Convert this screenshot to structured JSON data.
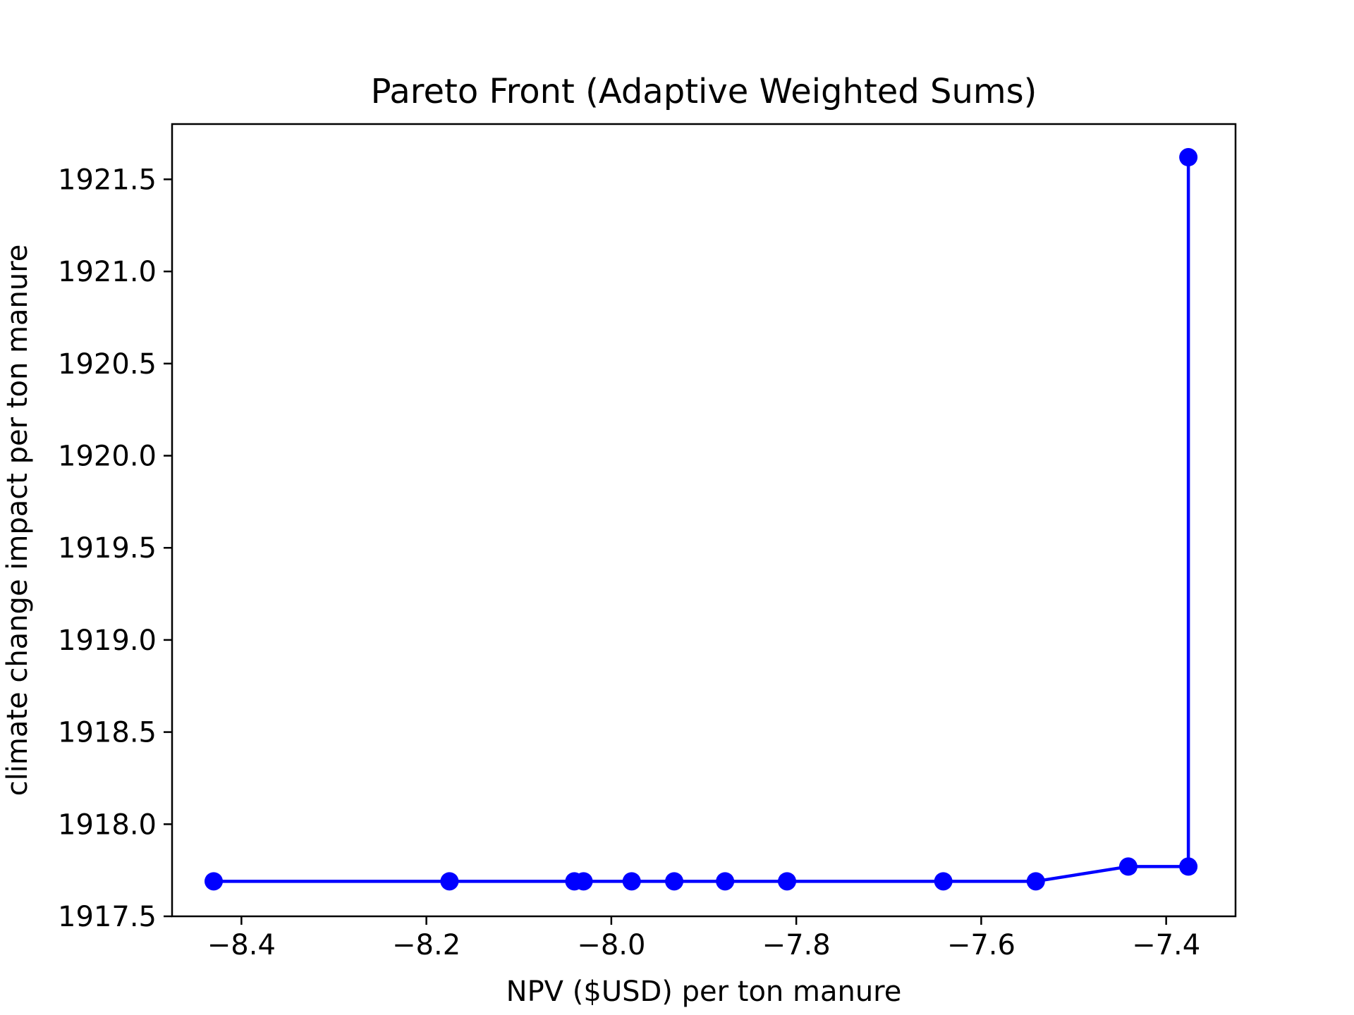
{
  "chart_data": {
    "type": "line",
    "title": "Pareto Front (Adaptive Weighted Sums)",
    "xlabel": "NPV ($USD) per ton manure",
    "ylabel": "climate change impact per ton manure",
    "xlim": [
      -8.475,
      -7.325
    ],
    "ylim": [
      1917.5,
      1921.8
    ],
    "xticks": [
      -8.4,
      -8.2,
      -8.0,
      -7.8,
      -7.6,
      -7.4
    ],
    "xtick_labels": [
      "−8.4",
      "−8.2",
      "−8.0",
      "−7.8",
      "−7.6",
      "−7.4"
    ],
    "yticks": [
      1917.5,
      1918.0,
      1918.5,
      1919.0,
      1919.5,
      1920.0,
      1920.5,
      1921.0,
      1921.5
    ],
    "ytick_labels": [
      "1917.5",
      "1918.0",
      "1918.5",
      "1919.0",
      "1919.5",
      "1920.0",
      "1920.5",
      "1921.0",
      "1921.5"
    ],
    "grid": false,
    "color": "#0000ff",
    "series": [
      {
        "x": [
          -8.43,
          -8.175,
          -8.04,
          -8.03,
          -7.978,
          -7.932,
          -7.877,
          -7.81,
          -7.641,
          -7.541,
          -7.441,
          -7.376,
          -7.376
        ],
        "y": [
          1917.69,
          1917.69,
          1917.69,
          1917.69,
          1917.69,
          1917.69,
          1917.69,
          1917.69,
          1917.69,
          1917.69,
          1917.77,
          1917.77,
          1921.62
        ]
      }
    ]
  }
}
